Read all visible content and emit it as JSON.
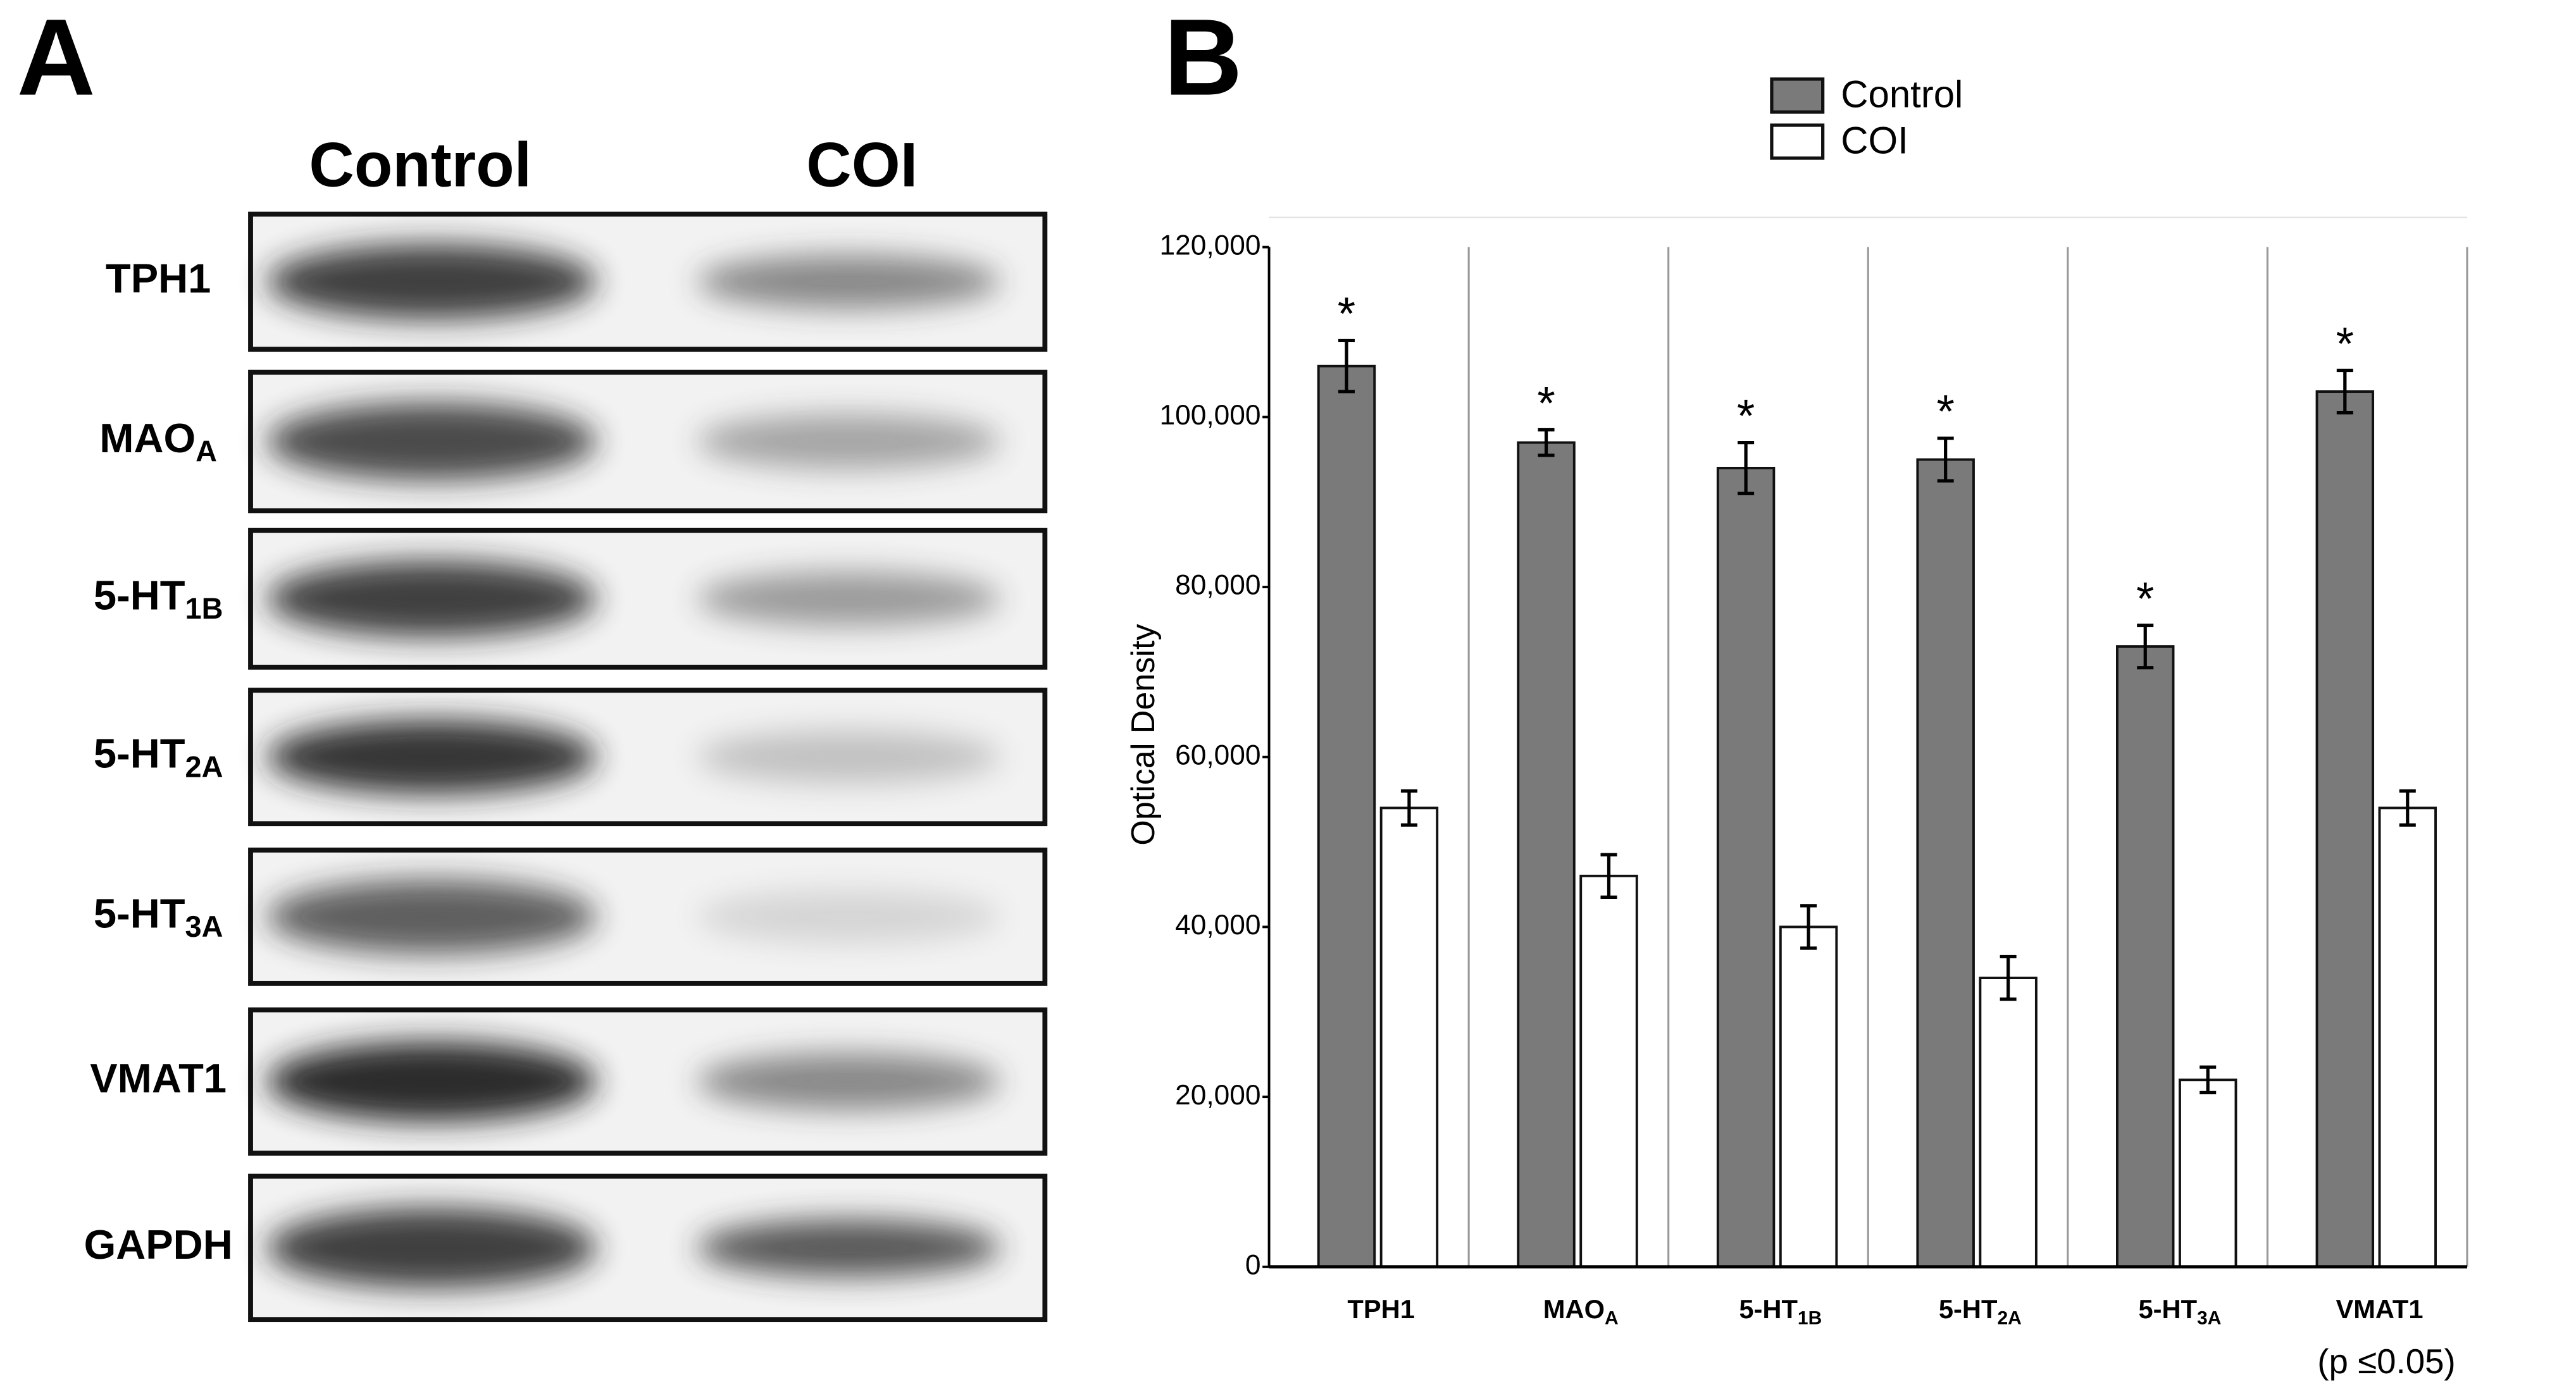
{
  "panel_a": {
    "label": "A",
    "columns": [
      "Control",
      "COI"
    ],
    "rows": [
      {
        "label": "TPH1",
        "sub": null
      },
      {
        "label": "MAO",
        "sub": "A"
      },
      {
        "label": "5-HT",
        "sub": "1B"
      },
      {
        "label": "5-HT",
        "sub": "2A"
      },
      {
        "label": "5-HT",
        "sub": "3A"
      },
      {
        "label": "VMAT1",
        "sub": null
      },
      {
        "label": "GAPDH",
        "sub": null
      }
    ]
  },
  "panel_b_label": "B",
  "chart_data": {
    "type": "bar",
    "categories": [
      "TPH1",
      "MAO",
      "5-HT",
      "5-HT",
      "5-HT",
      "VMAT1"
    ],
    "category_subscripts": [
      null,
      "A",
      "1B",
      "2A",
      "3A",
      null
    ],
    "series": [
      {
        "name": "Control",
        "color": "#7a7a7a",
        "values": [
          106000,
          97000,
          94000,
          95000,
          73000,
          103000
        ],
        "errors": [
          3000,
          1500,
          3000,
          2500,
          2500,
          2500
        ]
      },
      {
        "name": "COI",
        "color": "#ffffff",
        "values": [
          54000,
          46000,
          40000,
          34000,
          22000,
          54000
        ],
        "errors": [
          2000,
          2500,
          2500,
          2500,
          1500,
          2000
        ]
      }
    ],
    "significance_mark": "*",
    "ylabel": "Optical Density",
    "ylim": [
      0,
      120000
    ],
    "yticks": [
      0,
      {
        "value": 20000,
        "label": "20,000"
      },
      {
        "value": 40000,
        "label": "40,000"
      },
      {
        "value": 60000,
        "label": "60,000"
      },
      {
        "value": 80000,
        "label": "80,000"
      },
      {
        "value": 100000,
        "label": "100,000"
      },
      {
        "value": 120000,
        "label": "120,000"
      }
    ],
    "note": "(p ≤0.05)"
  }
}
